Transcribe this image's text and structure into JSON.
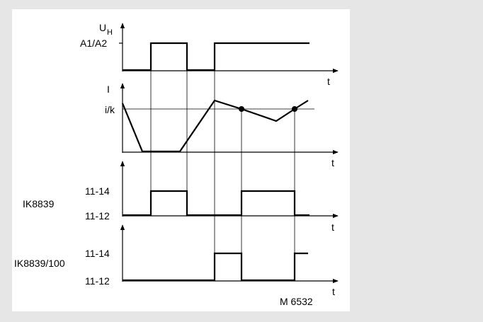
{
  "diagram": {
    "signals": [
      {
        "id": "uh",
        "y_label_main": "U",
        "y_label_sub": "H",
        "level_label": "A1/A2",
        "t_label": "t"
      },
      {
        "id": "current",
        "y_label": "I",
        "level_label": "i/k",
        "t_label": "t"
      },
      {
        "id": "ik8839",
        "device_label": "IK8839",
        "high_label": "11-14",
        "low_label": "11-12",
        "t_label": "t"
      },
      {
        "id": "ik8839_100",
        "device_label": "IK8839/100",
        "high_label": "11-14",
        "low_label": "11-12",
        "t_label": "t"
      }
    ],
    "figure_code": "M 6532"
  }
}
